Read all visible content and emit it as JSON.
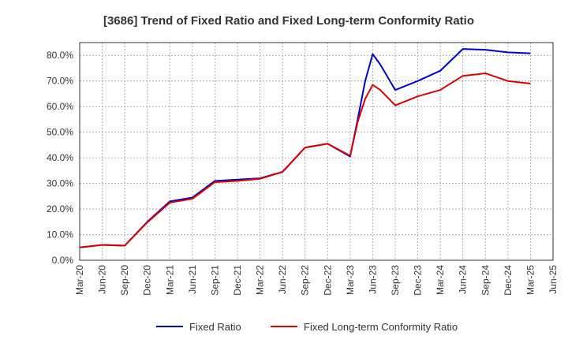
{
  "chart_data": {
    "type": "line",
    "title": "[3686]  Trend of Fixed Ratio and Fixed Long-term Conformity Ratio",
    "xlabel": "",
    "ylabel": "",
    "ylim": [
      0,
      85
    ],
    "yticks": [
      0,
      10,
      20,
      30,
      40,
      50,
      60,
      70,
      80
    ],
    "ytick_labels": [
      "0.0%",
      "10.0%",
      "20.0%",
      "30.0%",
      "40.0%",
      "50.0%",
      "60.0%",
      "70.0%",
      "80.0%"
    ],
    "x_range": [
      "2020-03",
      "2025-06"
    ],
    "xtick_labels": [
      "Mar-20",
      "Jun-20",
      "Sep-20",
      "Dec-20",
      "Mar-21",
      "Jun-21",
      "Sep-21",
      "Dec-21",
      "Mar-22",
      "Jun-22",
      "Sep-22",
      "Dec-22",
      "Mar-23",
      "Jun-23",
      "Sep-23",
      "Dec-23",
      "Mar-24",
      "Jun-24",
      "Sep-24",
      "Dec-24",
      "Mar-25",
      "Jun-25"
    ],
    "grid": true,
    "legend_position": "bottom",
    "series": [
      {
        "name": "Fixed Ratio",
        "color": "#0000cc",
        "x": [
          "2020-03",
          "2020-06",
          "2020-09",
          "2020-12",
          "2021-03",
          "2021-06",
          "2021-09",
          "2021-12",
          "2022-03",
          "2022-06",
          "2022-09",
          "2022-12",
          "2023-03",
          "2023-04",
          "2023-05",
          "2023-06",
          "2023-07",
          "2023-08",
          "2023-09",
          "2023-12",
          "2024-03",
          "2024-06",
          "2024-09",
          "2024-12",
          "2025-03"
        ],
        "values": [
          5.0,
          6.0,
          5.7,
          15.0,
          23.0,
          24.5,
          31.0,
          31.5,
          32.0,
          34.5,
          44.0,
          45.5,
          40.5,
          55.0,
          70.0,
          80.5,
          76.5,
          71.5,
          66.5,
          70.0,
          74.0,
          82.5,
          82.2,
          81.2,
          80.8
        ]
      },
      {
        "name": "Fixed Long-term Conformity Ratio",
        "color": "#dd0000",
        "x": [
          "2020-03",
          "2020-06",
          "2020-09",
          "2020-12",
          "2021-03",
          "2021-06",
          "2021-09",
          "2021-12",
          "2022-03",
          "2022-06",
          "2022-09",
          "2022-12",
          "2023-03",
          "2023-04",
          "2023-05",
          "2023-06",
          "2023-07",
          "2023-08",
          "2023-09",
          "2023-12",
          "2024-03",
          "2024-06",
          "2024-09",
          "2024-12",
          "2025-03"
        ],
        "values": [
          5.0,
          6.0,
          5.7,
          14.8,
          22.5,
          24.0,
          30.5,
          31.0,
          31.8,
          34.5,
          44.0,
          45.5,
          40.8,
          54.0,
          63.0,
          68.5,
          66.5,
          63.5,
          60.5,
          64.0,
          66.5,
          72.0,
          73.0,
          70.0,
          69.0
        ]
      }
    ]
  }
}
